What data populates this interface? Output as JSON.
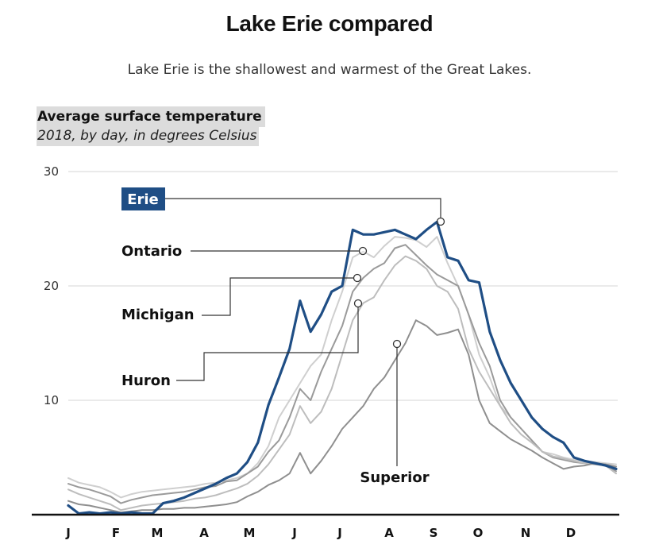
{
  "header": {
    "title": "Lake Erie compared",
    "subtitle": "Lake Erie is the shallowest and warmest of the Great Lakes."
  },
  "panel": {
    "title": "Average surface temperature",
    "subtitle": "2018, by day, in degrees Celsius"
  },
  "colors": {
    "erie": "#1f4e85",
    "ontario": "#cfcfcf",
    "michigan": "#9a9a9a",
    "huron": "#bdbdbd",
    "superior": "#8f8f8f",
    "grid": "#d4d4d4",
    "axis": "#111111",
    "leader": "#333333"
  },
  "chart_data": {
    "type": "line",
    "title": "Average surface temperature",
    "subtitle": "2018, by day, in degrees Celsius",
    "xlabel": "",
    "ylabel": "",
    "ylim": [
      0,
      30
    ],
    "yticks": [
      10,
      20,
      30
    ],
    "ytick_labels": [
      "10",
      "20",
      "30"
    ],
    "grid": true,
    "x_unit": "day of year",
    "xlim": [
      1,
      365
    ],
    "xticks": [
      1,
      32,
      60,
      91,
      121,
      152,
      182,
      213,
      244,
      274,
      305,
      335
    ],
    "xtick_labels": [
      "J",
      "F",
      "M",
      "A",
      "M",
      "J",
      "J",
      "A",
      "S",
      "O",
      "N",
      "D"
    ],
    "x": [
      1,
      8,
      15,
      22,
      29,
      36,
      43,
      50,
      57,
      64,
      71,
      78,
      85,
      92,
      99,
      106,
      113,
      120,
      127,
      134,
      141,
      148,
      155,
      162,
      169,
      176,
      183,
      190,
      197,
      204,
      211,
      218,
      225,
      232,
      239,
      246,
      253,
      260,
      267,
      274,
      281,
      288,
      295,
      302,
      309,
      316,
      323,
      330,
      337,
      344,
      351,
      358,
      365
    ],
    "series": [
      {
        "name": "Erie",
        "label": "Erie",
        "highlight": true,
        "values": [
          0.8,
          0.1,
          0.2,
          0.1,
          0.2,
          0.1,
          0.2,
          0.1,
          0.1,
          1.0,
          1.2,
          1.5,
          1.9,
          2.3,
          2.7,
          3.2,
          3.6,
          4.6,
          6.3,
          9.6,
          12.0,
          14.5,
          18.7,
          16.0,
          17.5,
          19.5,
          20.0,
          24.9,
          24.5,
          24.5,
          24.7,
          24.9,
          24.5,
          24.1,
          24.9,
          25.6,
          22.5,
          22.2,
          20.5,
          20.3,
          16.0,
          13.5,
          11.5,
          10.0,
          8.5,
          7.5,
          6.8,
          6.3,
          5.0,
          4.7,
          4.5,
          4.3,
          4.0
        ],
        "annotation_day": 246
      },
      {
        "name": "Ontario",
        "label": "Ontario",
        "values": [
          3.2,
          2.8,
          2.6,
          2.4,
          2.0,
          1.5,
          1.8,
          2.0,
          2.1,
          2.2,
          2.3,
          2.4,
          2.5,
          2.7,
          2.8,
          3.0,
          3.2,
          3.6,
          4.5,
          6.0,
          8.5,
          10.0,
          11.5,
          13.0,
          14.0,
          17.0,
          19.5,
          22.5,
          23.0,
          22.5,
          23.5,
          24.3,
          24.2,
          24.0,
          23.4,
          24.3,
          22.0,
          20.0,
          17.5,
          14.0,
          12.0,
          9.5,
          8.5,
          7.5,
          6.5,
          5.5,
          5.3,
          5.0,
          4.8,
          4.7,
          4.6,
          4.5,
          4.4
        ],
        "annotation_day": 214
      },
      {
        "name": "Michigan",
        "label": "Michigan",
        "values": [
          2.7,
          2.4,
          2.2,
          1.9,
          1.6,
          1.0,
          1.3,
          1.5,
          1.7,
          1.8,
          1.9,
          2.0,
          2.2,
          2.4,
          2.5,
          2.9,
          3.0,
          3.6,
          4.2,
          5.5,
          6.5,
          8.5,
          11.0,
          10.0,
          12.5,
          14.5,
          16.5,
          19.5,
          20.7,
          21.5,
          22.0,
          23.3,
          23.6,
          22.7,
          21.8,
          21.0,
          20.5,
          20.0,
          17.5,
          15.0,
          13.0,
          10.0,
          8.5,
          7.5,
          6.5,
          5.5,
          5.0,
          4.8,
          4.6,
          4.5,
          4.4,
          4.3,
          3.8
        ],
        "annotation_day": 208
      },
      {
        "name": "Huron",
        "label": "Huron",
        "values": [
          2.2,
          1.8,
          1.5,
          1.2,
          0.9,
          0.4,
          0.6,
          0.8,
          0.9,
          1.0,
          1.1,
          1.2,
          1.4,
          1.5,
          1.7,
          2.0,
          2.3,
          2.7,
          3.4,
          4.4,
          5.7,
          7.0,
          9.5,
          8.0,
          9.0,
          11.0,
          14.0,
          17.0,
          18.5,
          19.0,
          20.5,
          21.8,
          22.6,
          22.2,
          21.5,
          20.0,
          19.5,
          18.0,
          14.5,
          12.5,
          11.0,
          9.5,
          8.0,
          7.0,
          6.3,
          5.5,
          5.1,
          4.9,
          4.7,
          4.5,
          4.5,
          4.3,
          3.6
        ],
        "annotation_day": 208
      },
      {
        "name": "Superior",
        "label": "Superior",
        "values": [
          1.2,
          0.9,
          0.8,
          0.6,
          0.4,
          0.2,
          0.3,
          0.4,
          0.4,
          0.5,
          0.5,
          0.6,
          0.6,
          0.7,
          0.8,
          0.9,
          1.1,
          1.6,
          2.0,
          2.6,
          3.0,
          3.6,
          5.4,
          3.6,
          4.7,
          6.0,
          7.5,
          8.5,
          9.5,
          11.0,
          12.0,
          13.5,
          15.0,
          17.0,
          16.5,
          15.7,
          15.9,
          16.2,
          14.0,
          10.0,
          8.0,
          7.3,
          6.6,
          6.1,
          5.6,
          5.0,
          4.5,
          4.0,
          4.2,
          4.3,
          4.5,
          4.4,
          4.2
        ],
        "annotation_day": 225
      }
    ]
  }
}
